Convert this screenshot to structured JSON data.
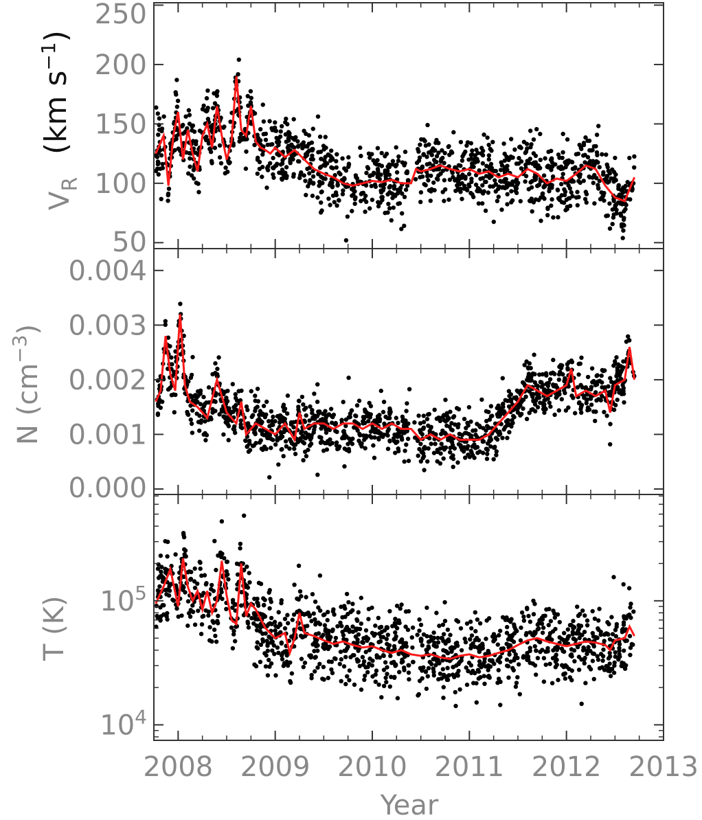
{
  "chart_data": [
    {
      "type": "scatter",
      "panel": "top",
      "ylabel_var": "V",
      "ylabel_sub": "R",
      "ylabel_unit_pre": "(km s",
      "ylabel_unit_sup": "−1",
      "ylabel_unit_post": ")",
      "xlim": [
        2007.75,
        2013.0
      ],
      "ylim": [
        45,
        252
      ],
      "yticks": [
        {
          "v": 50,
          "label": "50"
        },
        {
          "v": 100,
          "label": "100"
        },
        {
          "v": 150,
          "label": "150"
        },
        {
          "v": 200,
          "label": "200"
        },
        {
          "v": 250,
          "label": "250"
        }
      ],
      "yscale": "linear",
      "series": [
        {
          "kind": "points",
          "color": "#000000",
          "spread": 14,
          "density": 0.55
        },
        {
          "kind": "line",
          "color": "#ff1a1a",
          "x": [
            2007.77,
            2007.85,
            2007.9,
            2007.95,
            2008.0,
            2008.05,
            2008.1,
            2008.15,
            2008.2,
            2008.25,
            2008.3,
            2008.35,
            2008.4,
            2008.45,
            2008.5,
            2008.55,
            2008.6,
            2008.65,
            2008.7,
            2008.75,
            2008.8,
            2008.85,
            2008.9,
            2008.95,
            2009.0,
            2009.1,
            2009.2,
            2009.3,
            2009.4,
            2009.5,
            2009.6,
            2009.7,
            2009.8,
            2009.9,
            2010.0,
            2010.1,
            2010.2,
            2010.3,
            2010.4,
            2010.45,
            2010.5,
            2010.6,
            2010.7,
            2010.8,
            2010.9,
            2011.0,
            2011.1,
            2011.2,
            2011.3,
            2011.4,
            2011.5,
            2011.6,
            2011.7,
            2011.8,
            2011.9,
            2012.0,
            2012.1,
            2012.2,
            2012.3,
            2012.4,
            2012.5,
            2012.6,
            2012.7
          ],
          "y": [
            125,
            140,
            98,
            140,
            160,
            120,
            145,
            125,
            110,
            140,
            150,
            130,
            165,
            140,
            120,
            135,
            190,
            145,
            140,
            165,
            135,
            130,
            128,
            125,
            130,
            122,
            128,
            120,
            112,
            108,
            105,
            100,
            98,
            100,
            102,
            101,
            103,
            100,
            100,
            112,
            110,
            112,
            115,
            112,
            110,
            112,
            108,
            110,
            105,
            108,
            105,
            112,
            108,
            100,
            104,
            102,
            108,
            115,
            112,
            98,
            88,
            85,
            105
          ]
        }
      ]
    },
    {
      "type": "scatter",
      "panel": "middle",
      "ylabel": "N (cm",
      "ylabel_sup": "−3",
      "ylabel_post": ")",
      "xlim": [
        2007.75,
        2013.0
      ],
      "ylim": [
        -0.0001,
        0.0044
      ],
      "yticks": [
        {
          "v": 0.0,
          "label": "0.000"
        },
        {
          "v": 0.001,
          "label": "0.001"
        },
        {
          "v": 0.002,
          "label": "0.002"
        },
        {
          "v": 0.003,
          "label": "0.003"
        },
        {
          "v": 0.004,
          "label": "0.004"
        }
      ],
      "yscale": "linear",
      "series": [
        {
          "kind": "points",
          "color": "#000000",
          "spread": 0.00025,
          "density": 0.55
        },
        {
          "kind": "line",
          "color": "#ff1a1a",
          "x": [
            2007.77,
            2007.82,
            2007.87,
            2007.92,
            2007.97,
            2008.02,
            2008.07,
            2008.12,
            2008.2,
            2008.3,
            2008.4,
            2008.5,
            2008.6,
            2008.65,
            2008.7,
            2008.8,
            2008.9,
            2009.0,
            2009.1,
            2009.2,
            2009.25,
            2009.3,
            2009.4,
            2009.5,
            2009.6,
            2009.7,
            2009.8,
            2009.9,
            2010.0,
            2010.1,
            2010.2,
            2010.3,
            2010.4,
            2010.5,
            2010.6,
            2010.7,
            2010.8,
            2010.9,
            2011.0,
            2011.1,
            2011.2,
            2011.3,
            2011.4,
            2011.5,
            2011.6,
            2011.7,
            2011.8,
            2011.9,
            2012.0,
            2012.05,
            2012.1,
            2012.2,
            2012.3,
            2012.4,
            2012.45,
            2012.5,
            2012.6,
            2012.65,
            2012.7
          ],
          "y": [
            0.0016,
            0.0018,
            0.0028,
            0.0021,
            0.0018,
            0.0032,
            0.0019,
            0.0016,
            0.0015,
            0.0013,
            0.002,
            0.0014,
            0.0012,
            0.0016,
            0.001,
            0.0012,
            0.0011,
            0.001,
            0.0012,
            0.0009,
            0.0014,
            0.0011,
            0.0012,
            0.0012,
            0.0011,
            0.0012,
            0.0012,
            0.0011,
            0.0012,
            0.0011,
            0.0012,
            0.0011,
            0.0011,
            0.0009,
            0.001,
            0.0009,
            0.001,
            0.0009,
            0.0009,
            0.0009,
            0.001,
            0.0012,
            0.0014,
            0.0016,
            0.0019,
            0.0018,
            0.0017,
            0.0018,
            0.0019,
            0.0022,
            0.0017,
            0.0018,
            0.0017,
            0.0018,
            0.0014,
            0.0019,
            0.002,
            0.0026,
            0.002
          ]
        }
      ]
    },
    {
      "type": "scatter",
      "panel": "bottom",
      "ylabel": "T (K)",
      "xlim": [
        2007.75,
        2013.0
      ],
      "ylim": [
        7500,
        720000
      ],
      "yticks": [
        {
          "v": 10000,
          "base": "10",
          "exp": "4"
        },
        {
          "v": 100000,
          "base": "10",
          "exp": "5"
        }
      ],
      "yscale": "log",
      "series": [
        {
          "kind": "points",
          "color": "#000000",
          "spread": 0.16,
          "density": 0.55
        },
        {
          "kind": "line",
          "color": "#ff1a1a",
          "x": [
            2007.77,
            2007.85,
            2007.92,
            2008.0,
            2008.05,
            2008.1,
            2008.15,
            2008.2,
            2008.25,
            2008.3,
            2008.35,
            2008.4,
            2008.45,
            2008.5,
            2008.55,
            2008.6,
            2008.65,
            2008.7,
            2008.75,
            2008.8,
            2008.9,
            2009.0,
            2009.1,
            2009.15,
            2009.2,
            2009.25,
            2009.3,
            2009.4,
            2009.5,
            2009.6,
            2009.7,
            2009.8,
            2009.9,
            2010.0,
            2010.1,
            2010.2,
            2010.3,
            2010.4,
            2010.5,
            2010.6,
            2010.7,
            2010.8,
            2010.9,
            2011.0,
            2011.1,
            2011.2,
            2011.3,
            2011.4,
            2011.5,
            2011.6,
            2011.7,
            2011.8,
            2011.9,
            2012.0,
            2012.1,
            2012.2,
            2012.3,
            2012.4,
            2012.45,
            2012.5,
            2012.6,
            2012.65,
            2012.7
          ],
          "y": [
            95000,
            130000,
            180000,
            90000,
            220000,
            130000,
            100000,
            120000,
            85000,
            120000,
            80000,
            100000,
            210000,
            110000,
            70000,
            65000,
            200000,
            75000,
            95000,
            85000,
            60000,
            50000,
            55000,
            38000,
            50000,
            80000,
            55000,
            52000,
            48000,
            45000,
            47000,
            44000,
            42000,
            43000,
            40000,
            38000,
            40000,
            37000,
            36000,
            37000,
            35000,
            34000,
            36000,
            37000,
            35000,
            36000,
            38000,
            40000,
            44000,
            48000,
            50000,
            47000,
            45000,
            43000,
            45000,
            47000,
            46000,
            44000,
            40000,
            48000,
            50000,
            62000,
            52000
          ]
        }
      ]
    }
  ],
  "xticks": [
    {
      "v": 2008,
      "label": "2008"
    },
    {
      "v": 2009,
      "label": "2009"
    },
    {
      "v": 2010,
      "label": "2010"
    },
    {
      "v": 2011,
      "label": "2011"
    },
    {
      "v": 2012,
      "label": "2012"
    },
    {
      "v": 2013,
      "label": "2013"
    }
  ],
  "xlabel": "Year"
}
